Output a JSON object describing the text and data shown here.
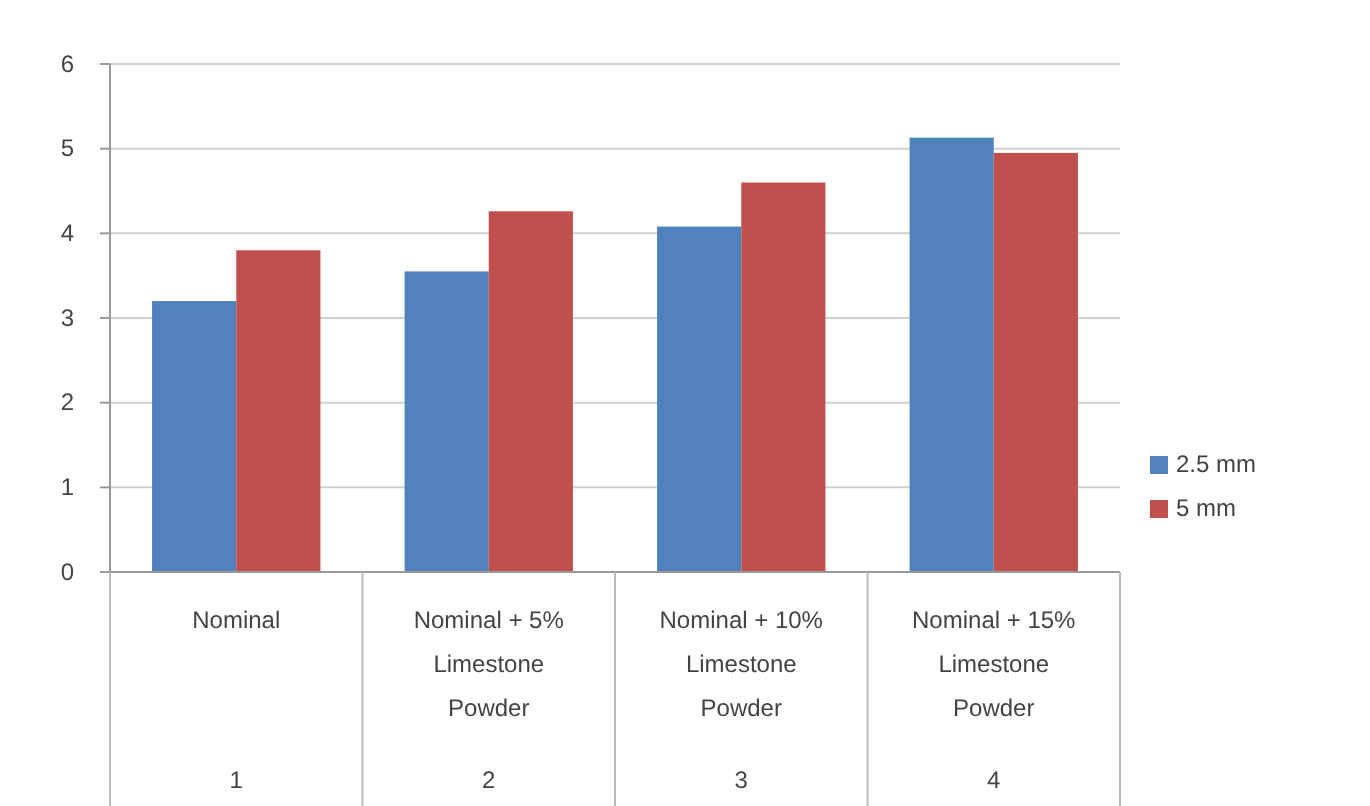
{
  "chart_data": {
    "type": "bar",
    "categories": [
      "Nominal",
      "Nominal + 5% Limestone Powder",
      "Nominal + 10% Limestone Powder",
      "Nominal + 15% Limestone Powder"
    ],
    "series": [
      {
        "name": "2.5 mm",
        "color": "#4f81bd",
        "values": [
          3.2,
          3.55,
          4.08,
          5.13
        ]
      },
      {
        "name": "5 mm",
        "color": "#c0504d",
        "values": [
          3.8,
          4.26,
          4.6,
          4.95
        ]
      }
    ],
    "ylim": [
      0,
      6
    ],
    "yticks": [
      0,
      1,
      2,
      3,
      4,
      5,
      6
    ],
    "grid": "y",
    "legend": "right",
    "annotations": [
      "1",
      "2",
      "3",
      "4"
    ]
  }
}
